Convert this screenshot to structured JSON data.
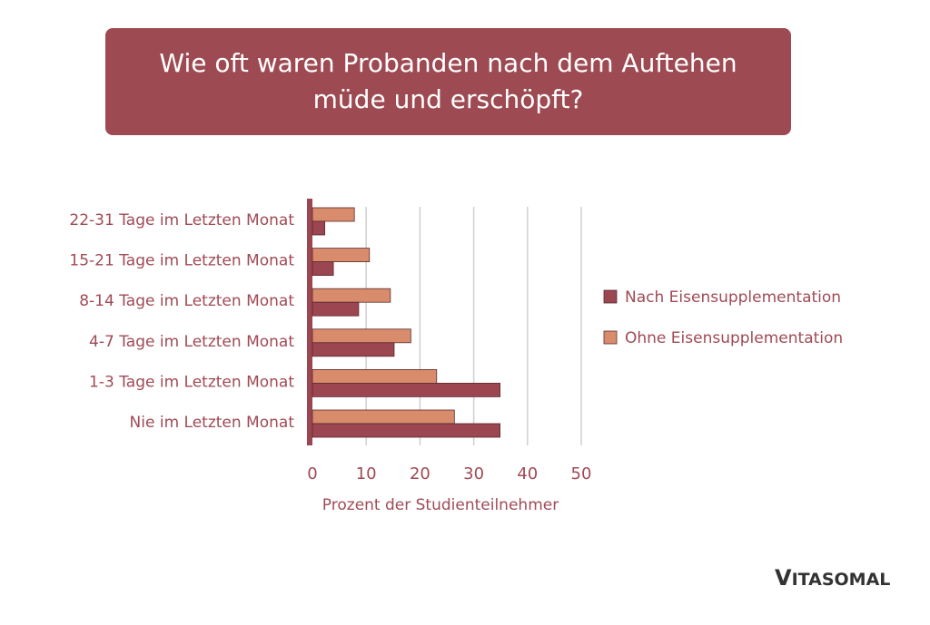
{
  "chart_data": {
    "type": "bar",
    "orientation": "horizontal",
    "title": "Wie oft waren Probanden nach dem Auftehen müde und erschöpft?",
    "xlabel": "Prozent der Studienteilnehmer",
    "ylabel": "",
    "xlim": [
      0,
      50
    ],
    "xticks": [
      "0",
      "10",
      "20",
      "30",
      "40",
      "50"
    ],
    "grid": true,
    "legend_position": "right",
    "categories": [
      "22-31 Tage im Letzten Monat",
      "15-21 Tage im Letzten Monat",
      "8-14 Tage im Letzten Monat",
      "4-7 Tage im Letzten Monat",
      "1-3 Tage im Letzten Monat",
      "Nie im Letzten Monat"
    ],
    "series": [
      {
        "name": "Ohne Eisensupplementation",
        "color": "#d98c6c",
        "values": [
          7.8,
          10.6,
          14.5,
          18.3,
          23.1,
          26.4
        ]
      },
      {
        "name": "Nach Eisensupplementation",
        "color": "#9b4650",
        "values": [
          2.3,
          3.9,
          8.6,
          15.2,
          34.9,
          34.9
        ]
      }
    ],
    "legend_order": [
      "Nach Eisensupplementation",
      "Ohne Eisensupplementation"
    ]
  },
  "colors": {
    "banner": "#9e4a52",
    "text": "#a04a55"
  },
  "logo": "VITASOMAL"
}
